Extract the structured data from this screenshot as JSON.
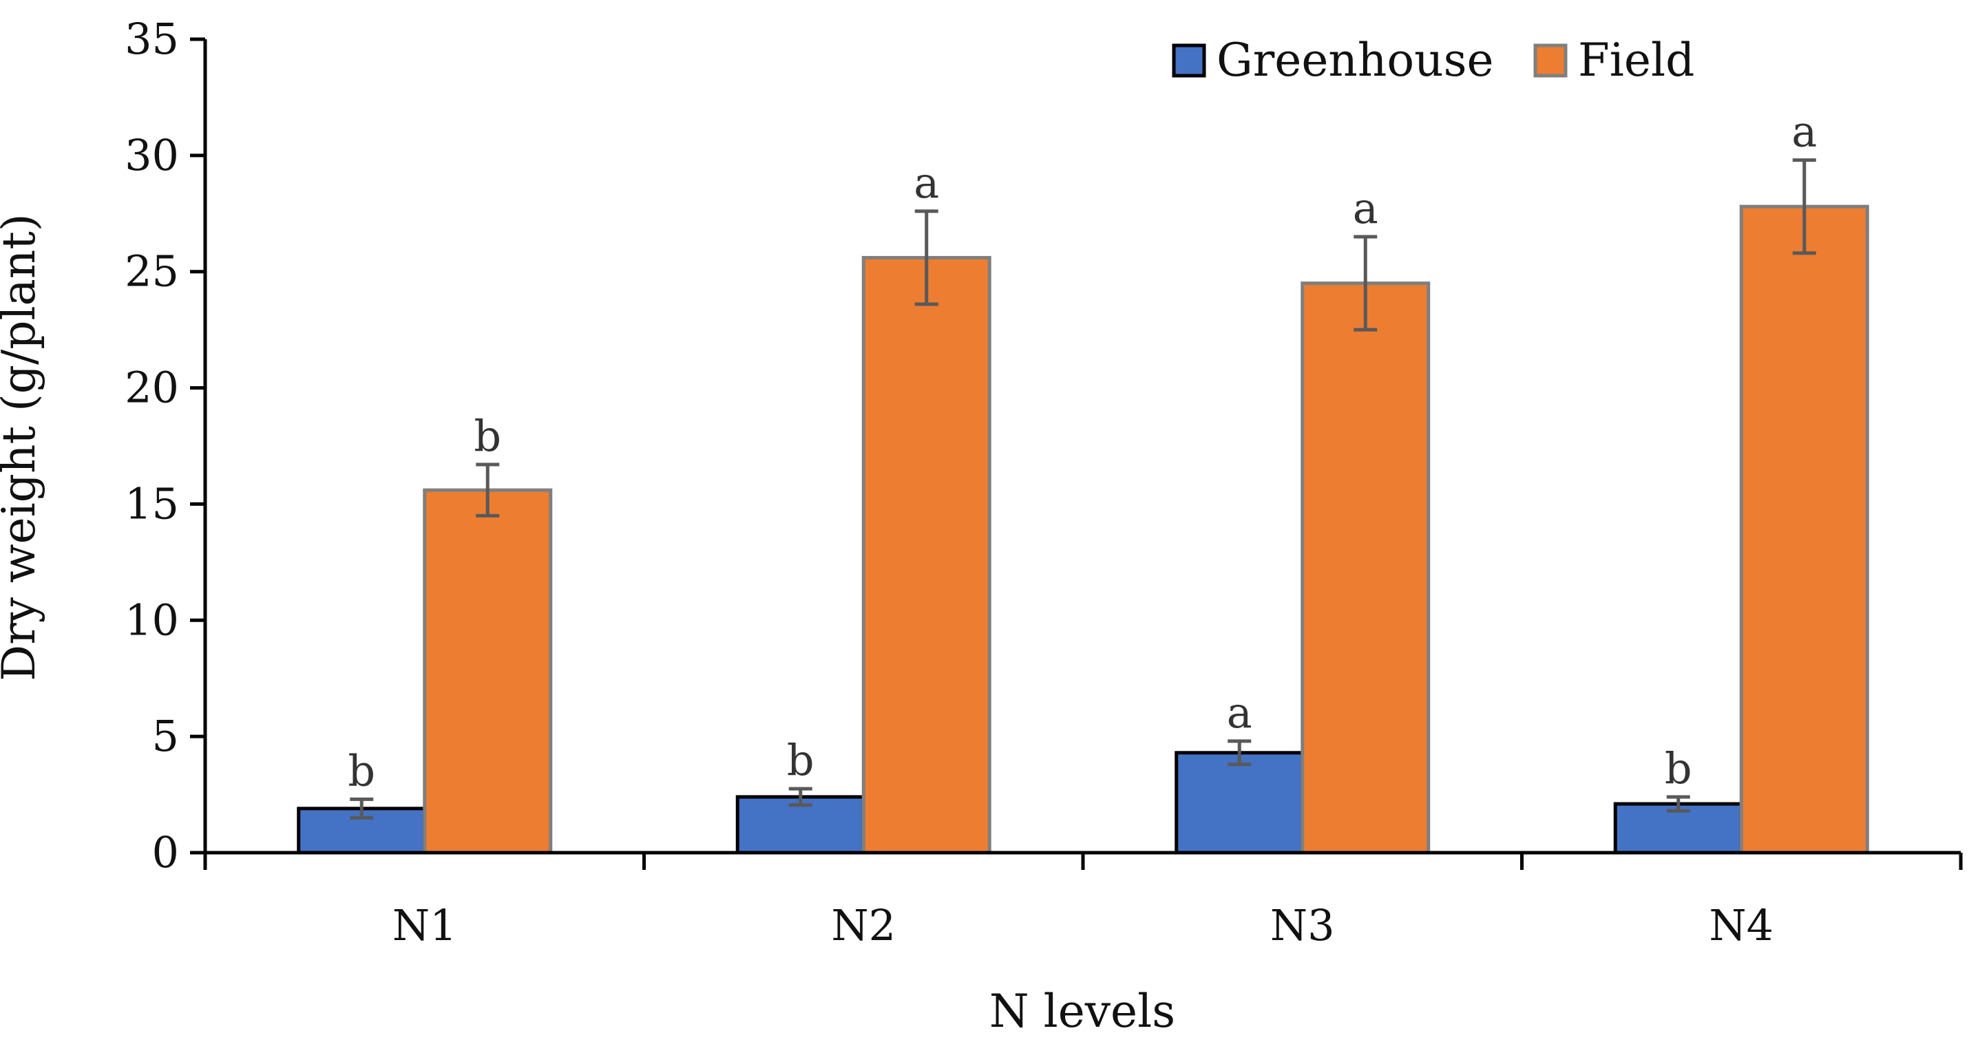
{
  "chart_data": {
    "type": "bar",
    "title": "",
    "xlabel": "N levels",
    "ylabel": "Dry weight (g/plant)",
    "ylim": [
      0,
      35
    ],
    "yticks": [
      0,
      5,
      10,
      15,
      20,
      25,
      30,
      35
    ],
    "categories": [
      "N1",
      "N2",
      "N3",
      "N4"
    ],
    "legend_position": "top-right",
    "grid": false,
    "series": [
      {
        "name": "Greenhouse",
        "color": "#4472C4",
        "border_color": "#000000",
        "values": [
          1.9,
          2.4,
          4.3,
          2.1
        ],
        "errors": [
          0.4,
          0.35,
          0.5,
          0.3
        ],
        "significance": [
          "b",
          "b",
          "a",
          "b"
        ]
      },
      {
        "name": "Field",
        "color": "#ED7D31",
        "border_color": "#7F7F7F",
        "values": [
          15.6,
          25.6,
          24.5,
          27.8
        ],
        "errors": [
          1.1,
          2.0,
          2.0,
          2.0
        ],
        "significance": [
          "b",
          "a",
          "a",
          "a"
        ]
      }
    ]
  }
}
